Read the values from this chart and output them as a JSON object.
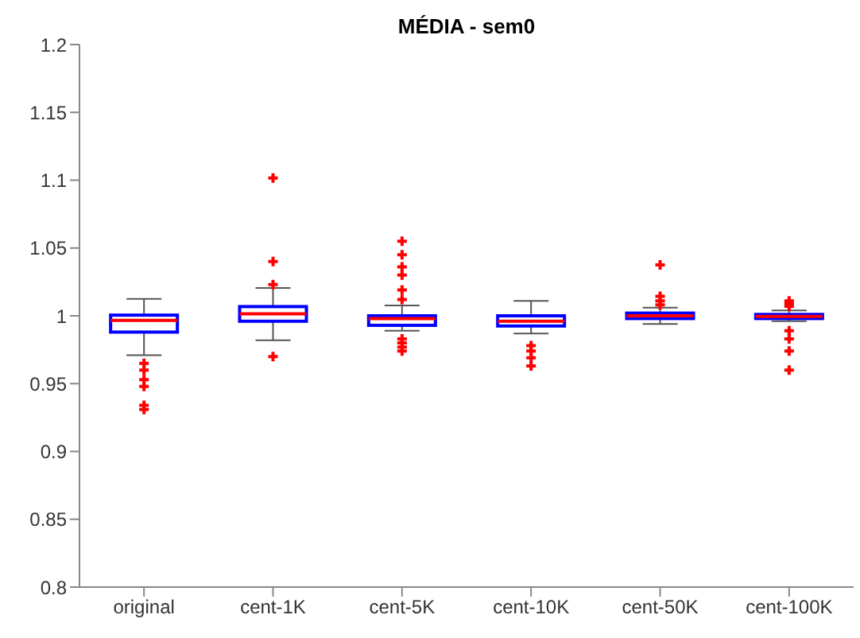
{
  "chart_data": {
    "type": "box",
    "title": "MÉDIA - sem0",
    "categories": [
      "original",
      "cent-1K",
      "cent-5K",
      "cent-10K",
      "cent-50K",
      "cent-100K"
    ],
    "ylim": [
      0.8,
      1.2
    ],
    "yticks": [
      0.8,
      0.85,
      0.9,
      0.95,
      1,
      1.05,
      1.1,
      1.15,
      1.2
    ],
    "marker": "cross",
    "series": [
      {
        "color": "#0000ff",
        "boxes": [
          {
            "low": 0.971,
            "q1": 0.988,
            "median": 0.9966,
            "q3": 1.0005,
            "high": 1.0125,
            "outliers": [
              0.965,
              0.96,
              0.953,
              0.948,
              0.934,
              0.931
            ]
          },
          {
            "low": 0.982,
            "q1": 0.996,
            "median": 1.0015,
            "q3": 1.0068,
            "high": 1.0205,
            "outliers": [
              1.1016,
              1.04,
              1.023,
              0.97
            ]
          },
          {
            "low": 0.989,
            "q1": 0.993,
            "median": 0.998,
            "q3": 1.0,
            "high": 1.0076,
            "outliers": [
              1.055,
              1.045,
              1.036,
              1.03,
              1.019,
              1.012,
              0.983,
              0.98,
              0.977,
              0.974
            ]
          },
          {
            "low": 0.987,
            "q1": 0.9925,
            "median": 0.996,
            "q3": 1.0,
            "high": 1.011,
            "outliers": [
              0.978,
              0.974,
              0.969,
              0.963
            ]
          },
          {
            "low": 0.994,
            "q1": 0.998,
            "median": 1.0,
            "q3": 1.002,
            "high": 1.006,
            "outliers": [
              1.0375,
              1.0144,
              1.011,
              1.008
            ]
          },
          {
            "low": 0.996,
            "q1": 0.998,
            "median": 0.9995,
            "q3": 1.001,
            "high": 1.004,
            "outliers": [
              1.011,
              1.009,
              1.007,
              0.989,
              0.983,
              0.974,
              0.96
            ]
          }
        ]
      }
    ]
  }
}
